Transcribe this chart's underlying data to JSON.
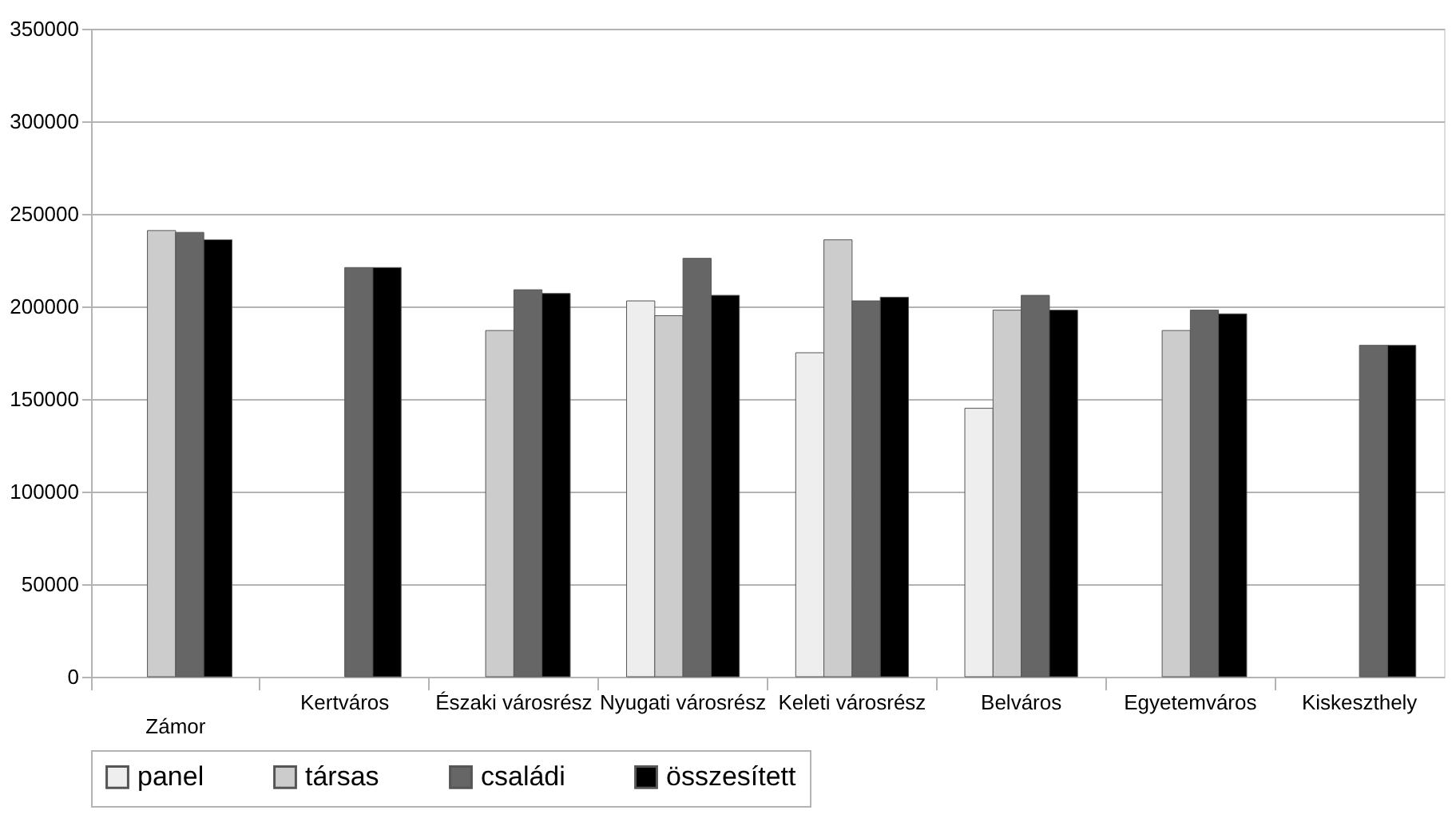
{
  "chart_data": {
    "type": "bar",
    "categories": [
      "Zámor",
      "Kertváros",
      "Északi városrész",
      "Nyugati városrész",
      "Keleti városrész",
      "Belváros",
      "Egyetemváros",
      "Kiskeszthely"
    ],
    "series": [
      {
        "name": "panel",
        "color": "#eeeeee",
        "values": [
          null,
          null,
          null,
          203000,
          175000,
          145000,
          null,
          null
        ]
      },
      {
        "name": "társas",
        "color": "#cccccc",
        "values": [
          241000,
          null,
          187000,
          195000,
          236000,
          198000,
          187000,
          null
        ]
      },
      {
        "name": "családi",
        "color": "#666666",
        "values": [
          240000,
          221000,
          209000,
          226000,
          203000,
          206000,
          198000,
          179000
        ]
      },
      {
        "name": "összesített",
        "color": "#000000",
        "values": [
          236000,
          221000,
          207000,
          206000,
          205000,
          198000,
          196000,
          179000
        ]
      }
    ],
    "ylim": [
      0,
      350000
    ],
    "yticks": [
      0,
      50000,
      100000,
      150000,
      200000,
      250000,
      300000,
      350000
    ],
    "grid": "y",
    "legend": "bottom"
  }
}
